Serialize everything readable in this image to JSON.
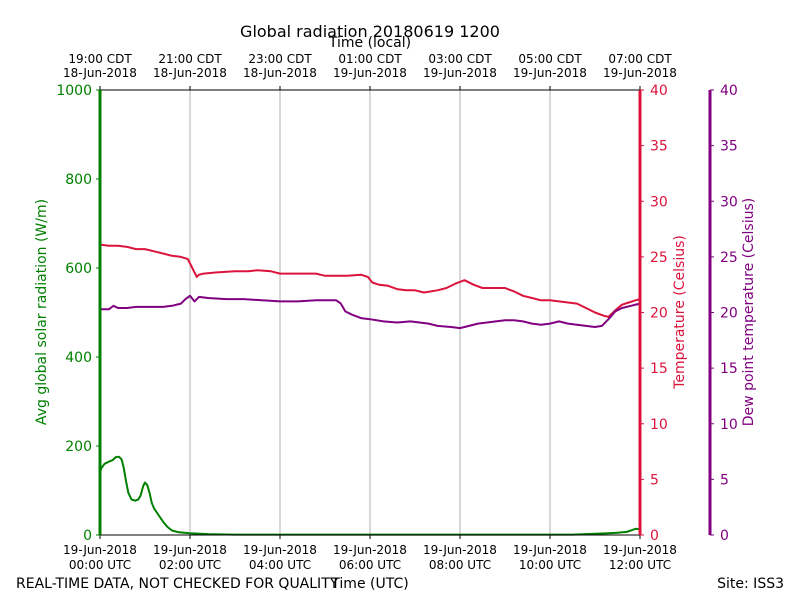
{
  "chart_data": {
    "type": "line",
    "title": "Global radiation 20180619 1200",
    "top_axis_label": "Time (local)",
    "xlabel": "Time (UTC)",
    "footer_left": "REAL-TIME DATA, NOT CHECKED FOR QUALITY",
    "footer_right": "Site: ISS3",
    "x_range_hours": [
      0,
      12
    ],
    "bottom_ticks": [
      {
        "h": 0,
        "line1": "19-Jun-2018",
        "line2": "00:00 UTC"
      },
      {
        "h": 2,
        "line1": "19-Jun-2018",
        "line2": "02:00 UTC"
      },
      {
        "h": 4,
        "line1": "19-Jun-2018",
        "line2": "04:00 UTC"
      },
      {
        "h": 6,
        "line1": "19-Jun-2018",
        "line2": "06:00 UTC"
      },
      {
        "h": 8,
        "line1": "19-Jun-2018",
        "line2": "08:00 UTC"
      },
      {
        "h": 10,
        "line1": "19-Jun-2018",
        "line2": "10:00 UTC"
      },
      {
        "h": 12,
        "line1": "19-Jun-2018",
        "line2": "12:00 UTC"
      }
    ],
    "top_ticks": [
      {
        "h": 0,
        "line1": "19:00 CDT",
        "line2": "18-Jun-2018"
      },
      {
        "h": 2,
        "line1": "21:00 CDT",
        "line2": "18-Jun-2018"
      },
      {
        "h": 4,
        "line1": "23:00 CDT",
        "line2": "18-Jun-2018"
      },
      {
        "h": 6,
        "line1": "01:00 CDT",
        "line2": "19-Jun-2018"
      },
      {
        "h": 8,
        "line1": "03:00 CDT",
        "line2": "19-Jun-2018"
      },
      {
        "h": 10,
        "line1": "05:00 CDT",
        "line2": "19-Jun-2018"
      },
      {
        "h": 12,
        "line1": "07:00 CDT",
        "line2": "19-Jun-2018"
      }
    ],
    "grid": "vertical",
    "axes": {
      "radiation": {
        "label": "Avg global solar radiation (W/m)",
        "range": [
          0,
          1000
        ],
        "ticks": [
          0,
          200,
          400,
          600,
          800,
          1000
        ],
        "color": "#008000"
      },
      "temperature": {
        "label": "Temperature (Celsius)",
        "range": [
          0,
          40
        ],
        "ticks": [
          0,
          5,
          10,
          15,
          20,
          25,
          30,
          35,
          40
        ],
        "color": "#dc143c"
      },
      "dewpoint": {
        "label": "Dew point temperature (Celsius)",
        "range": [
          0,
          40
        ],
        "ticks": [
          0,
          5,
          10,
          15,
          20,
          25,
          30,
          35,
          40
        ],
        "color": "#800080"
      }
    },
    "series": [
      {
        "name": "Avg global solar radiation",
        "axis": "radiation",
        "color": "#008000",
        "points": [
          [
            0,
            140
          ],
          [
            0.03,
            150
          ],
          [
            0.1,
            160
          ],
          [
            0.2,
            165
          ],
          [
            0.28,
            168
          ],
          [
            0.35,
            175
          ],
          [
            0.42,
            176
          ],
          [
            0.48,
            170
          ],
          [
            0.53,
            150
          ],
          [
            0.58,
            120
          ],
          [
            0.63,
            95
          ],
          [
            0.7,
            80
          ],
          [
            0.78,
            77
          ],
          [
            0.85,
            80
          ],
          [
            0.9,
            88
          ],
          [
            0.96,
            110
          ],
          [
            1.0,
            118
          ],
          [
            1.05,
            112
          ],
          [
            1.1,
            95
          ],
          [
            1.15,
            72
          ],
          [
            1.2,
            60
          ],
          [
            1.3,
            45
          ],
          [
            1.4,
            30
          ],
          [
            1.5,
            18
          ],
          [
            1.6,
            10
          ],
          [
            1.75,
            6
          ],
          [
            2.0,
            4
          ],
          [
            2.4,
            2
          ],
          [
            3.0,
            1
          ],
          [
            4.0,
            1
          ],
          [
            6.0,
            1
          ],
          [
            8.0,
            1
          ],
          [
            10.0,
            1
          ],
          [
            10.5,
            1
          ],
          [
            11.0,
            3
          ],
          [
            11.3,
            4
          ],
          [
            11.5,
            5
          ],
          [
            11.7,
            7
          ],
          [
            11.8,
            10
          ],
          [
            11.9,
            14
          ],
          [
            12.0,
            13
          ]
        ]
      },
      {
        "name": "Temperature",
        "axis": "temperature",
        "color": "#dc143c",
        "points": [
          [
            0,
            26.1
          ],
          [
            0.2,
            26.0
          ],
          [
            0.4,
            26.0
          ],
          [
            0.6,
            25.9
          ],
          [
            0.8,
            25.7
          ],
          [
            1.0,
            25.7
          ],
          [
            1.2,
            25.5
          ],
          [
            1.4,
            25.3
          ],
          [
            1.6,
            25.1
          ],
          [
            1.8,
            25.0
          ],
          [
            1.95,
            24.8
          ],
          [
            2.05,
            24.0
          ],
          [
            2.15,
            23.2
          ],
          [
            2.2,
            23.4
          ],
          [
            2.3,
            23.5
          ],
          [
            2.6,
            23.6
          ],
          [
            3.0,
            23.7
          ],
          [
            3.3,
            23.7
          ],
          [
            3.5,
            23.8
          ],
          [
            3.8,
            23.7
          ],
          [
            4.0,
            23.5
          ],
          [
            4.5,
            23.5
          ],
          [
            4.8,
            23.5
          ],
          [
            5.0,
            23.3
          ],
          [
            5.5,
            23.3
          ],
          [
            5.8,
            23.4
          ],
          [
            5.95,
            23.2
          ],
          [
            6.05,
            22.7
          ],
          [
            6.2,
            22.5
          ],
          [
            6.4,
            22.4
          ],
          [
            6.6,
            22.1
          ],
          [
            6.8,
            22.0
          ],
          [
            7.0,
            22.0
          ],
          [
            7.2,
            21.8
          ],
          [
            7.5,
            22.0
          ],
          [
            7.7,
            22.2
          ],
          [
            7.9,
            22.6
          ],
          [
            8.1,
            22.9
          ],
          [
            8.3,
            22.5
          ],
          [
            8.5,
            22.2
          ],
          [
            8.8,
            22.2
          ],
          [
            9.0,
            22.2
          ],
          [
            9.2,
            21.9
          ],
          [
            9.4,
            21.5
          ],
          [
            9.6,
            21.3
          ],
          [
            9.8,
            21.1
          ],
          [
            10.0,
            21.1
          ],
          [
            10.2,
            21.0
          ],
          [
            10.4,
            20.9
          ],
          [
            10.6,
            20.8
          ],
          [
            10.8,
            20.4
          ],
          [
            11.0,
            20.0
          ],
          [
            11.2,
            19.7
          ],
          [
            11.3,
            19.6
          ],
          [
            11.45,
            20.2
          ],
          [
            11.6,
            20.7
          ],
          [
            11.75,
            20.9
          ],
          [
            11.9,
            21.1
          ],
          [
            12.0,
            21.2
          ]
        ]
      },
      {
        "name": "Dew point temperature",
        "axis": "dewpoint",
        "color": "#800080",
        "points": [
          [
            0,
            20.3
          ],
          [
            0.2,
            20.3
          ],
          [
            0.3,
            20.6
          ],
          [
            0.4,
            20.4
          ],
          [
            0.6,
            20.4
          ],
          [
            0.8,
            20.5
          ],
          [
            1.0,
            20.5
          ],
          [
            1.2,
            20.5
          ],
          [
            1.4,
            20.5
          ],
          [
            1.6,
            20.6
          ],
          [
            1.8,
            20.8
          ],
          [
            1.9,
            21.2
          ],
          [
            2.0,
            21.5
          ],
          [
            2.1,
            21.0
          ],
          [
            2.2,
            21.4
          ],
          [
            2.4,
            21.3
          ],
          [
            2.8,
            21.2
          ],
          [
            3.2,
            21.2
          ],
          [
            3.6,
            21.1
          ],
          [
            4.0,
            21.0
          ],
          [
            4.4,
            21.0
          ],
          [
            4.8,
            21.1
          ],
          [
            5.1,
            21.1
          ],
          [
            5.25,
            21.1
          ],
          [
            5.35,
            20.8
          ],
          [
            5.45,
            20.1
          ],
          [
            5.6,
            19.8
          ],
          [
            5.8,
            19.5
          ],
          [
            6.0,
            19.4
          ],
          [
            6.3,
            19.2
          ],
          [
            6.6,
            19.1
          ],
          [
            6.9,
            19.2
          ],
          [
            7.1,
            19.1
          ],
          [
            7.3,
            19.0
          ],
          [
            7.5,
            18.8
          ],
          [
            7.8,
            18.7
          ],
          [
            8.0,
            18.6
          ],
          [
            8.2,
            18.8
          ],
          [
            8.4,
            19.0
          ],
          [
            8.6,
            19.1
          ],
          [
            8.8,
            19.2
          ],
          [
            9.0,
            19.3
          ],
          [
            9.2,
            19.3
          ],
          [
            9.4,
            19.2
          ],
          [
            9.6,
            19.0
          ],
          [
            9.8,
            18.9
          ],
          [
            10.0,
            19.0
          ],
          [
            10.2,
            19.2
          ],
          [
            10.4,
            19.0
          ],
          [
            10.6,
            18.9
          ],
          [
            10.8,
            18.8
          ],
          [
            11.0,
            18.7
          ],
          [
            11.15,
            18.8
          ],
          [
            11.3,
            19.4
          ],
          [
            11.45,
            20.1
          ],
          [
            11.6,
            20.4
          ],
          [
            11.8,
            20.6
          ],
          [
            12.0,
            20.8
          ]
        ]
      }
    ]
  }
}
